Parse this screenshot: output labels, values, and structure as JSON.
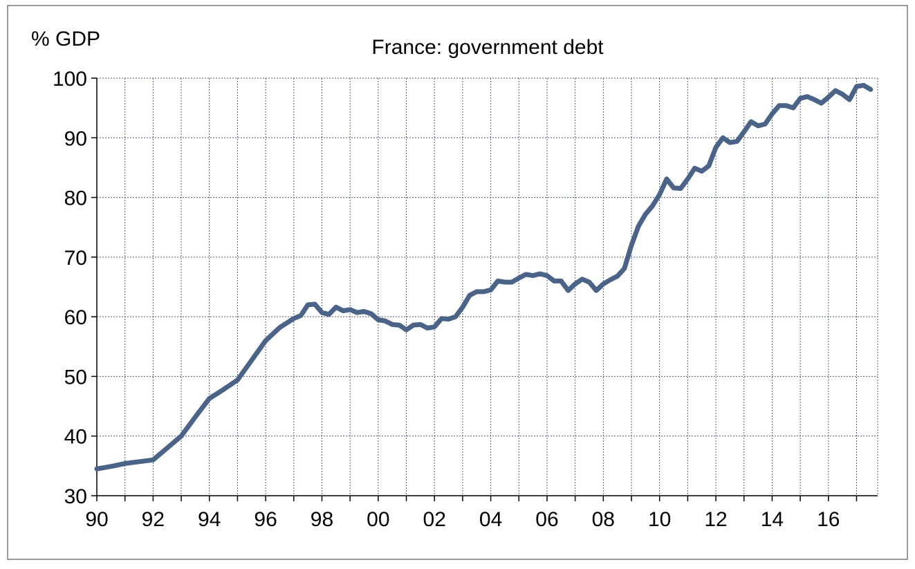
{
  "chart_data": {
    "type": "line",
    "title": "France: government debt",
    "xlabel": "",
    "ylabel": "% GDP",
    "ylim": [
      30,
      100
    ],
    "xlim": [
      1990,
      2017.75
    ],
    "yticks": [
      30,
      40,
      50,
      60,
      70,
      80,
      90,
      100
    ],
    "xticks": [
      {
        "x": 1990,
        "label": "90"
      },
      {
        "x": 1992,
        "label": "92"
      },
      {
        "x": 1994,
        "label": "94"
      },
      {
        "x": 1996,
        "label": "96"
      },
      {
        "x": 1998,
        "label": "98"
      },
      {
        "x": 2000,
        "label": "00"
      },
      {
        "x": 2002,
        "label": "02"
      },
      {
        "x": 2004,
        "label": "04"
      },
      {
        "x": 2006,
        "label": "06"
      },
      {
        "x": 2008,
        "label": "08"
      },
      {
        "x": 2010,
        "label": "10"
      },
      {
        "x": 2012,
        "label": "12"
      },
      {
        "x": 2014,
        "label": "14"
      },
      {
        "x": 2016,
        "label": "16"
      }
    ],
    "grid": true,
    "series_color": "#4a6389",
    "series": [
      {
        "x": [
          1990.0,
          1990.5,
          1991.0,
          1991.5,
          1992.0,
          1992.5,
          1993.0,
          1993.5,
          1994.0,
          1994.5,
          1995.0,
          1995.5,
          1996.0,
          1996.5,
          1997.0,
          1997.25,
          1997.5,
          1997.75,
          1998.0,
          1998.25,
          1998.5,
          1998.75,
          1999.0,
          1999.25,
          1999.5,
          1999.75,
          2000.0,
          2000.25,
          2000.5,
          2000.75,
          2001.0,
          2001.25,
          2001.5,
          2001.75,
          2002.0,
          2002.25,
          2002.5,
          2002.75,
          2003.0,
          2003.25,
          2003.5,
          2003.75,
          2004.0,
          2004.25,
          2004.5,
          2004.75,
          2005.0,
          2005.25,
          2005.5,
          2005.75,
          2006.0,
          2006.25,
          2006.5,
          2006.75,
          2007.0,
          2007.25,
          2007.5,
          2007.75,
          2008.0,
          2008.25,
          2008.5,
          2008.75,
          2009.0,
          2009.25,
          2009.5,
          2009.75,
          2010.0,
          2010.25,
          2010.5,
          2010.75,
          2011.0,
          2011.25,
          2011.5,
          2011.75,
          2012.0,
          2012.25,
          2012.5,
          2012.75,
          2013.0,
          2013.25,
          2013.5,
          2013.75,
          2014.0,
          2014.25,
          2014.5,
          2014.75,
          2015.0,
          2015.25,
          2015.5,
          2015.75,
          2016.0,
          2016.25,
          2016.5,
          2016.75,
          2017.0,
          2017.25,
          2017.5,
          2017.75
        ],
        "y": [
          34.5,
          34.9,
          35.4,
          35.7,
          36.0,
          38.0,
          40.0,
          43.2,
          46.3,
          47.8,
          49.4,
          52.7,
          56.0,
          58.2,
          59.7,
          60.2,
          62.0,
          62.1,
          60.7,
          60.4,
          61.6,
          61.0,
          61.2,
          60.7,
          60.9,
          60.5,
          59.5,
          59.3,
          58.7,
          58.6,
          57.8,
          58.6,
          58.7,
          58.1,
          58.3,
          59.7,
          59.6,
          60.0,
          61.6,
          63.6,
          64.2,
          64.2,
          64.5,
          66.0,
          65.8,
          65.8,
          66.5,
          67.1,
          66.9,
          67.2,
          66.9,
          66.0,
          66.0,
          64.4,
          65.5,
          66.3,
          65.8,
          64.4,
          65.5,
          66.2,
          66.8,
          68.1,
          72.0,
          75.2,
          77.2,
          78.6,
          80.5,
          83.1,
          81.6,
          81.5,
          83.1,
          84.9,
          84.4,
          85.3,
          88.4,
          90.0,
          89.2,
          89.4,
          91.0,
          92.7,
          92.0,
          92.3,
          94.0,
          95.4,
          95.4,
          95.0,
          96.6,
          96.9,
          96.4,
          95.8,
          96.8,
          97.9,
          97.3,
          96.4,
          98.6,
          98.8,
          98.1,
          null
        ]
      }
    ]
  }
}
